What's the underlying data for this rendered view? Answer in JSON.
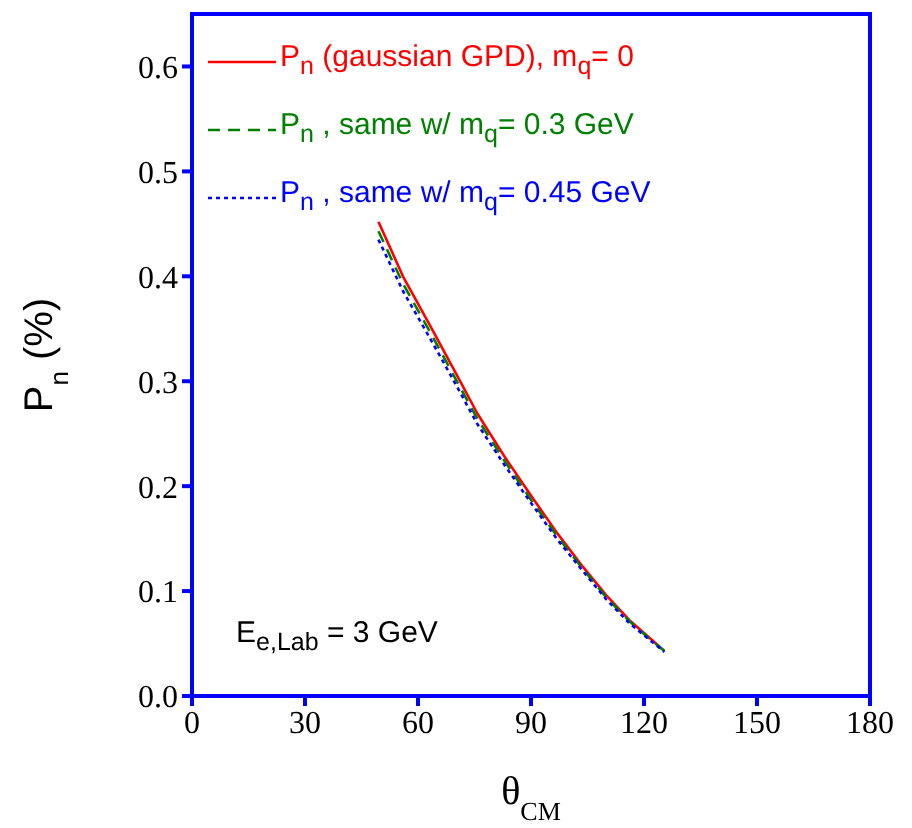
{
  "chart_data": {
    "type": "line",
    "xlabel": "θ$_{CM}$",
    "ylabel": "P$_{n}$ (%)",
    "xlim": [
      0,
      180
    ],
    "xticks": [
      0,
      30,
      60,
      90,
      120,
      150,
      180
    ],
    "ylim": [
      0,
      0.65
    ],
    "yticks": [
      {
        "value": 0,
        "label": "0.0"
      },
      {
        "value": 0.1,
        "label": "0.1"
      },
      {
        "value": 0.2,
        "label": "0.2"
      },
      {
        "value": 0.3,
        "label": "0.3"
      },
      {
        "value": 0.4,
        "label": "0.4"
      },
      {
        "value": 0.5,
        "label": "0.5"
      },
      {
        "value": 0.6,
        "label": "0.6"
      }
    ],
    "grid": false,
    "legend": "top left",
    "marker": "none",
    "annotations": [
      "E$_{e,Lab}$ = 3 GeV"
    ],
    "series": [
      {
        "name": "P$_{n}$ (gaussian GPD), m$_{q}$= 0",
        "color": "#ff0000",
        "line_style": "solid",
        "x": [
          49.5,
          56,
          63.5,
          70,
          75.8,
          83,
          89.8,
          97,
          103.8,
          110,
          116.2,
          121,
          125.4
        ],
        "values": [
          0.452,
          0.4,
          0.351,
          0.308,
          0.269,
          0.228,
          0.192,
          0.155,
          0.123,
          0.096,
          0.072,
          0.057,
          0.043
        ]
      },
      {
        "name": "P$_{n}$ , same w/ m$_{q}$= 0.3 GeV",
        "color": "#008000",
        "line_style": "dashed",
        "x": [
          49.5,
          56,
          63.5,
          70,
          75.8,
          83,
          89.8,
          97,
          103.8,
          110,
          116.2,
          121,
          125.4
        ],
        "values": [
          0.443,
          0.393,
          0.345,
          0.302,
          0.264,
          0.224,
          0.188,
          0.152,
          0.121,
          0.094,
          0.071,
          0.056,
          0.043
        ]
      },
      {
        "name": "P$_{n}$ , same w/ m$_{q}$= 0.45 GeV",
        "color": "#0000ff",
        "line_style": "dotted",
        "x": [
          49.5,
          56,
          63.5,
          70,
          75.8,
          83,
          89.8,
          97,
          103.8,
          110,
          116.2,
          121,
          125.4
        ],
        "values": [
          0.435,
          0.386,
          0.339,
          0.297,
          0.259,
          0.22,
          0.185,
          0.149,
          0.119,
          0.092,
          0.069,
          0.055,
          0.042
        ]
      }
    ]
  }
}
